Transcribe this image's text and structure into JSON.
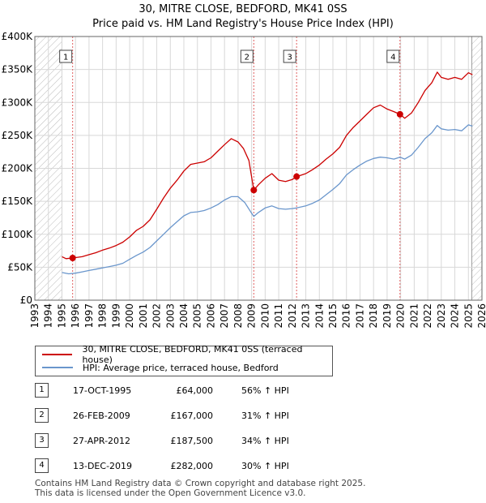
{
  "title": {
    "line1": "30, MITRE CLOSE, BEDFORD, MK41 0SS",
    "line2": "Price paid vs. HM Land Registry's House Price Index (HPI)"
  },
  "chart_data": {
    "type": "line",
    "title": "Price paid vs. HM Land Registry's House Price Index (HPI)",
    "xlabel": "",
    "ylabel": "",
    "xlim": [
      1993,
      2026
    ],
    "ylim": [
      0,
      400000
    ],
    "x_ticks": [
      "1993",
      "1994",
      "1995",
      "1996",
      "1997",
      "1998",
      "1999",
      "2000",
      "2001",
      "2002",
      "2003",
      "2004",
      "2005",
      "2006",
      "2007",
      "2008",
      "2009",
      "2010",
      "2011",
      "2012",
      "2013",
      "2014",
      "2015",
      "2016",
      "2017",
      "2018",
      "2019",
      "2020",
      "2021",
      "2022",
      "2023",
      "2024",
      "2025",
      "2026"
    ],
    "y_ticks": [
      {
        "value": 0,
        "label": "£0"
      },
      {
        "value": 50000,
        "label": "£50K"
      },
      {
        "value": 100000,
        "label": "£100K"
      },
      {
        "value": 150000,
        "label": "£150K"
      },
      {
        "value": 200000,
        "label": "£200K"
      },
      {
        "value": 250000,
        "label": "£250K"
      },
      {
        "value": 300000,
        "label": "£300K"
      },
      {
        "value": 350000,
        "label": "£350K"
      },
      {
        "value": 400000,
        "label": "£400K"
      }
    ],
    "hatched_ranges": [
      [
        1993,
        1995.0
      ],
      [
        2025.25,
        2026
      ]
    ],
    "series": [
      {
        "name": "30, MITRE CLOSE, BEDFORD, MK41 0SS (terraced house)",
        "color": "#cc0000",
        "points": [
          [
            1995.0,
            66000
          ],
          [
            1995.3,
            63000
          ],
          [
            1995.79,
            64000
          ],
          [
            1996.5,
            66000
          ],
          [
            1997.0,
            69000
          ],
          [
            1997.5,
            72000
          ],
          [
            1998.0,
            76000
          ],
          [
            1998.5,
            79000
          ],
          [
            1999.0,
            83000
          ],
          [
            1999.5,
            88000
          ],
          [
            2000.0,
            96000
          ],
          [
            2000.5,
            106000
          ],
          [
            2001.0,
            112000
          ],
          [
            2001.5,
            122000
          ],
          [
            2002.0,
            138000
          ],
          [
            2002.5,
            155000
          ],
          [
            2003.0,
            170000
          ],
          [
            2003.5,
            182000
          ],
          [
            2004.0,
            196000
          ],
          [
            2004.5,
            206000
          ],
          [
            2005.0,
            208000
          ],
          [
            2005.5,
            210000
          ],
          [
            2006.0,
            216000
          ],
          [
            2006.5,
            226000
          ],
          [
            2007.0,
            236000
          ],
          [
            2007.5,
            245000
          ],
          [
            2008.0,
            240000
          ],
          [
            2008.4,
            230000
          ],
          [
            2008.8,
            212000
          ],
          [
            2009.16,
            167000
          ],
          [
            2009.5,
            175000
          ],
          [
            2010.0,
            185000
          ],
          [
            2010.5,
            192000
          ],
          [
            2011.0,
            182000
          ],
          [
            2011.5,
            180000
          ],
          [
            2012.0,
            183000
          ],
          [
            2012.32,
            187500
          ],
          [
            2013.0,
            192000
          ],
          [
            2013.5,
            198000
          ],
          [
            2014.0,
            205000
          ],
          [
            2014.5,
            214000
          ],
          [
            2015.0,
            222000
          ],
          [
            2015.5,
            232000
          ],
          [
            2016.0,
            250000
          ],
          [
            2016.5,
            262000
          ],
          [
            2017.0,
            272000
          ],
          [
            2017.5,
            282000
          ],
          [
            2018.0,
            292000
          ],
          [
            2018.5,
            296000
          ],
          [
            2019.0,
            290000
          ],
          [
            2019.5,
            286000
          ],
          [
            2019.95,
            282000
          ],
          [
            2020.3,
            276000
          ],
          [
            2020.8,
            284000
          ],
          [
            2021.3,
            300000
          ],
          [
            2021.8,
            318000
          ],
          [
            2022.3,
            330000
          ],
          [
            2022.7,
            346000
          ],
          [
            2023.0,
            338000
          ],
          [
            2023.5,
            335000
          ],
          [
            2024.0,
            338000
          ],
          [
            2024.5,
            335000
          ],
          [
            2025.0,
            345000
          ],
          [
            2025.3,
            342000
          ]
        ]
      },
      {
        "name": "HPI: Average price, terraced house, Bedford",
        "color": "#6a96cc",
        "points": [
          [
            1995.0,
            42000
          ],
          [
            1995.5,
            40000
          ],
          [
            1996.0,
            41000
          ],
          [
            1996.5,
            43000
          ],
          [
            1997.0,
            45000
          ],
          [
            1997.5,
            47000
          ],
          [
            1998.0,
            49000
          ],
          [
            1998.5,
            51000
          ],
          [
            1999.0,
            53000
          ],
          [
            1999.5,
            56000
          ],
          [
            2000.0,
            62000
          ],
          [
            2000.5,
            68000
          ],
          [
            2001.0,
            73000
          ],
          [
            2001.5,
            80000
          ],
          [
            2002.0,
            90000
          ],
          [
            2002.5,
            100000
          ],
          [
            2003.0,
            110000
          ],
          [
            2003.5,
            119000
          ],
          [
            2004.0,
            128000
          ],
          [
            2004.5,
            133000
          ],
          [
            2005.0,
            134000
          ],
          [
            2005.5,
            136000
          ],
          [
            2006.0,
            140000
          ],
          [
            2006.5,
            145000
          ],
          [
            2007.0,
            152000
          ],
          [
            2007.5,
            157000
          ],
          [
            2008.0,
            157000
          ],
          [
            2008.5,
            148000
          ],
          [
            2009.0,
            132000
          ],
          [
            2009.16,
            127000
          ],
          [
            2009.5,
            133000
          ],
          [
            2010.0,
            140000
          ],
          [
            2010.5,
            143000
          ],
          [
            2011.0,
            139000
          ],
          [
            2011.5,
            138000
          ],
          [
            2012.0,
            139000
          ],
          [
            2012.32,
            140000
          ],
          [
            2013.0,
            143000
          ],
          [
            2013.5,
            147000
          ],
          [
            2014.0,
            152000
          ],
          [
            2014.5,
            160000
          ],
          [
            2015.0,
            168000
          ],
          [
            2015.5,
            177000
          ],
          [
            2016.0,
            190000
          ],
          [
            2016.5,
            198000
          ],
          [
            2017.0,
            205000
          ],
          [
            2017.5,
            211000
          ],
          [
            2018.0,
            215000
          ],
          [
            2018.5,
            217000
          ],
          [
            2019.0,
            216000
          ],
          [
            2019.5,
            214000
          ],
          [
            2019.95,
            217000
          ],
          [
            2020.3,
            214000
          ],
          [
            2020.8,
            220000
          ],
          [
            2021.3,
            232000
          ],
          [
            2021.8,
            245000
          ],
          [
            2022.3,
            254000
          ],
          [
            2022.7,
            265000
          ],
          [
            2023.0,
            260000
          ],
          [
            2023.5,
            258000
          ],
          [
            2024.0,
            259000
          ],
          [
            2024.5,
            257000
          ],
          [
            2025.0,
            266000
          ],
          [
            2025.3,
            264000
          ]
        ]
      }
    ],
    "sales": [
      {
        "label": "1",
        "x": 1995.79,
        "y": 64000
      },
      {
        "label": "2",
        "x": 2009.16,
        "y": 167000
      },
      {
        "label": "3",
        "x": 2012.32,
        "y": 187500
      },
      {
        "label": "4",
        "x": 2019.95,
        "y": 282000
      }
    ]
  },
  "legend": {
    "items": [
      {
        "label": "30, MITRE CLOSE, BEDFORD, MK41 0SS (terraced house)",
        "color": "#cc0000"
      },
      {
        "label": "HPI: Average price, terraced house, Bedford",
        "color": "#6a96cc"
      }
    ]
  },
  "transactions": [
    {
      "num": "1",
      "date": "17-OCT-1995",
      "price": "£64,000",
      "hpi": "56% ↑ HPI"
    },
    {
      "num": "2",
      "date": "26-FEB-2009",
      "price": "£167,000",
      "hpi": "31% ↑ HPI"
    },
    {
      "num": "3",
      "date": "27-APR-2012",
      "price": "£187,500",
      "hpi": "34% ↑ HPI"
    },
    {
      "num": "4",
      "date": "13-DEC-2019",
      "price": "£282,000",
      "hpi": "30% ↑ HPI"
    }
  ],
  "footer": {
    "line1": "Contains HM Land Registry data © Crown copyright and database right 2025.",
    "line2": "This data is licensed under the Open Government Licence v3.0."
  }
}
